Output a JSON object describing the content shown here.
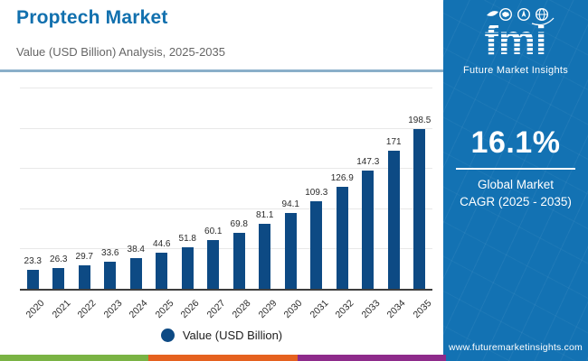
{
  "header": {
    "title": "Proptech Market",
    "subtitle": "Value (USD Billion) Analysis, 2025-2035"
  },
  "chart_data": {
    "type": "bar",
    "title": "Proptech Market",
    "subtitle": "Value (USD Billion) Analysis, 2025-2035",
    "categories": [
      "2020",
      "2021",
      "2022",
      "2023",
      "2024",
      "2025",
      "2026",
      "2027",
      "2028",
      "2029",
      "2030",
      "2031",
      "2032",
      "2033",
      "2034",
      "2035"
    ],
    "values": [
      23.3,
      26.3,
      29.7,
      33.6,
      38.4,
      44.6,
      51.8,
      60.1,
      69.8,
      81.1,
      94.1,
      109.3,
      126.9,
      147.3,
      171,
      198.5
    ],
    "xlabel": "",
    "ylabel": "Value (USD Billion)",
    "ylim": [
      0,
      250
    ],
    "gridline_interval": 50,
    "grid": "horizontal",
    "value_labels_shown": true,
    "bar_color": "#0d4a84",
    "legend": [
      "Value (USD Billion)"
    ],
    "legend_position": "bottom"
  },
  "legend": {
    "label": "Value (USD Billion)",
    "marker_color": "#0d4a84"
  },
  "sidebar": {
    "logo": {
      "text": "fmi",
      "caption": "Future Market Insights",
      "icons": [
        "us-map-icon",
        "compass-icon",
        "globe-icon"
      ]
    },
    "cagr": {
      "value": "16.1%",
      "label_line1": "Global Market",
      "label_line2": "CAGR (2025 - 2035)"
    },
    "website": "www.futuremarketinsights.com",
    "background": "#1372b3"
  },
  "footer": {
    "stripe_colors": [
      "#7ab344",
      "#e5611f",
      "#8e2b8b"
    ]
  },
  "colors": {
    "title": "#1170ae",
    "bar": "#0d4a84",
    "sidebar": "#1372b3",
    "divider": "#8aafc9"
  }
}
